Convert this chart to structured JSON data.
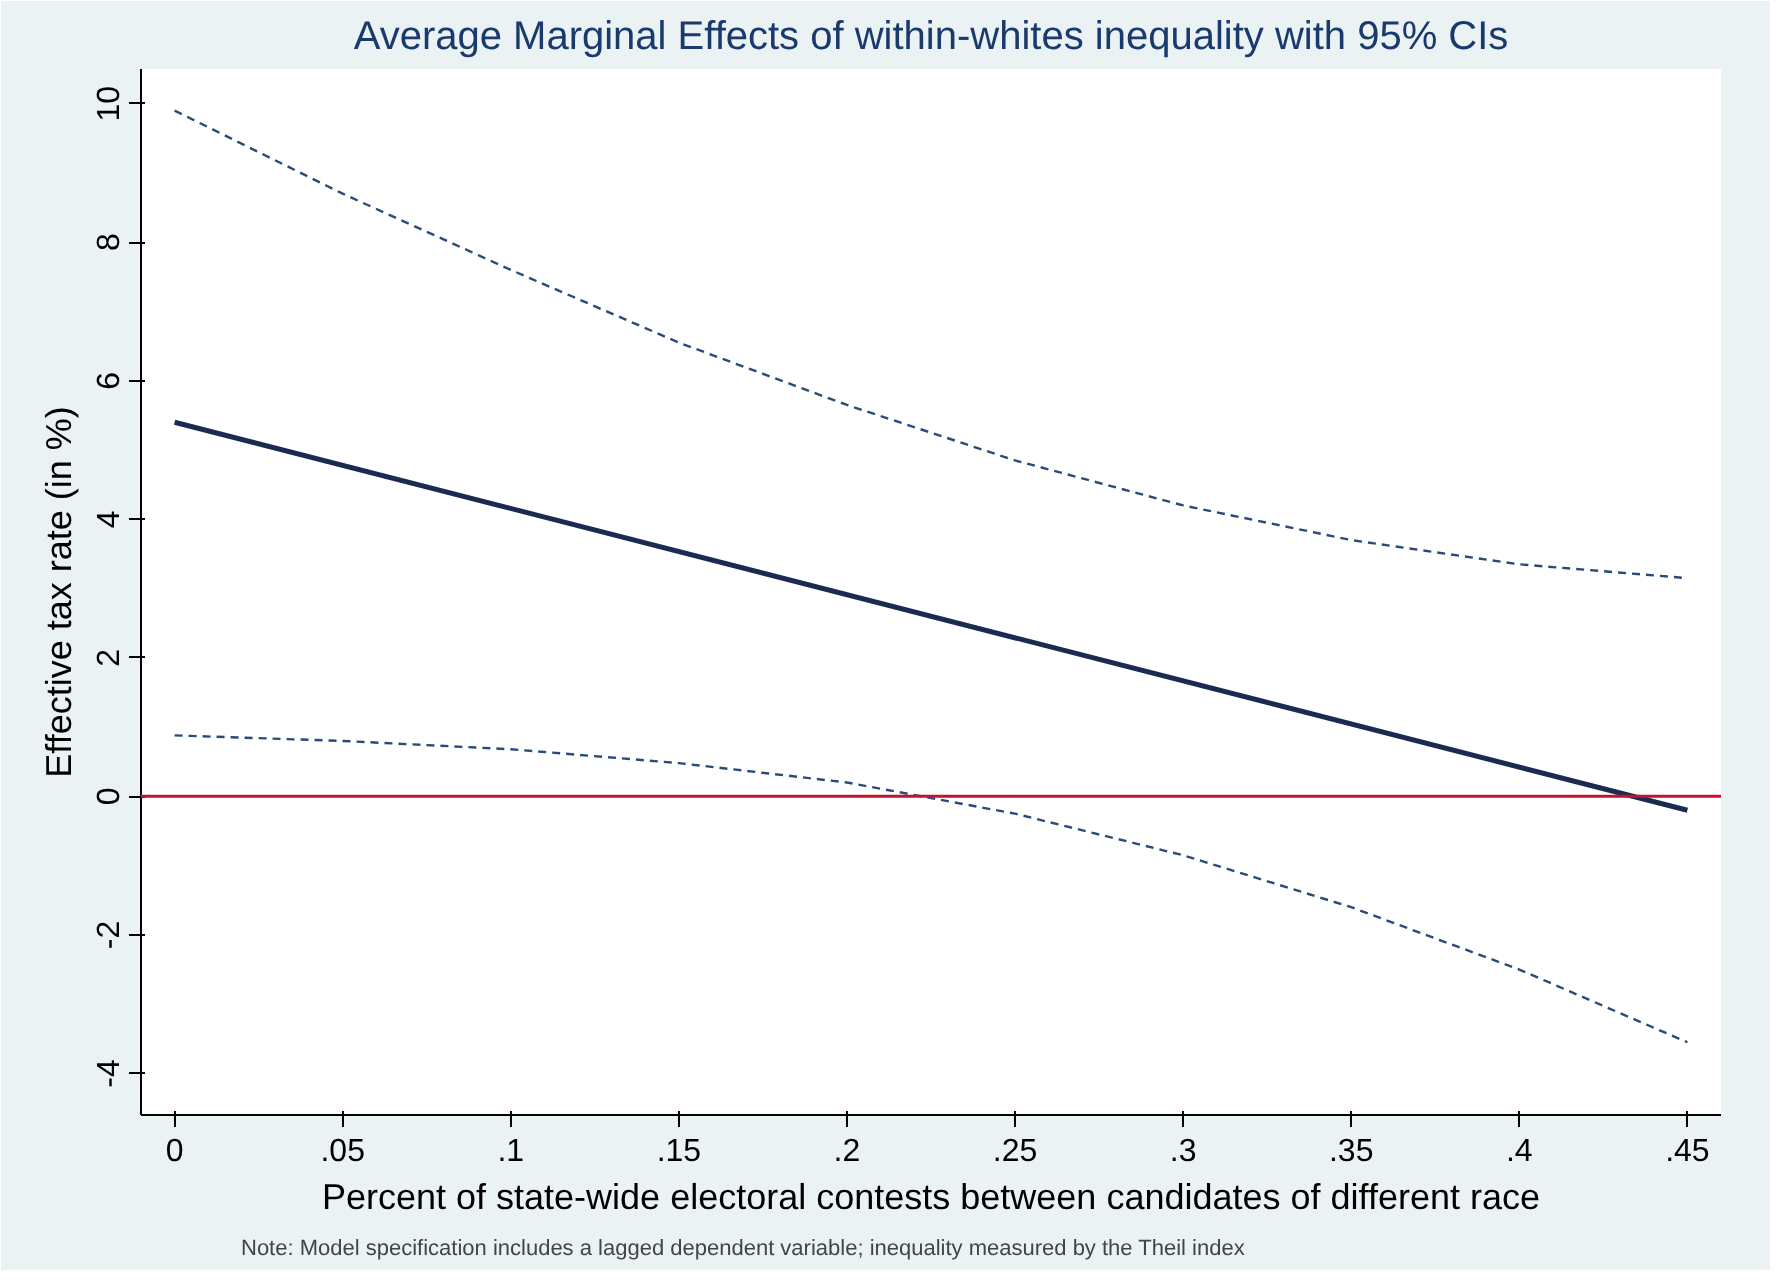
{
  "chart_data": {
    "type": "line",
    "title": "Average Marginal Effects of within-whites inequality with 95% CIs",
    "xlabel": "Percent of state-wide electoral contests between candidates of different race",
    "ylabel": "Effective tax rate (in %)",
    "x": [
      0,
      0.05,
      0.1,
      0.15,
      0.2,
      0.25,
      0.3,
      0.35,
      0.4,
      0.45
    ],
    "series": [
      {
        "color": "#1a2a50",
        "line_style": "solid",
        "x": [
          0,
          0.45
        ],
        "values": [
          5.4,
          -0.2
        ]
      },
      {
        "color": "#2a4a7a",
        "line_style": "dashed",
        "values": [
          9.9,
          8.7,
          7.6,
          6.55,
          5.65,
          4.85,
          4.2,
          3.7,
          3.35,
          3.15
        ]
      },
      {
        "color": "#2a4a7a",
        "line_style": "dashed",
        "values": [
          0.88,
          0.8,
          0.68,
          0.48,
          0.2,
          -0.25,
          -0.85,
          -1.6,
          -2.5,
          -3.55
        ]
      }
    ],
    "xlim": [
      -0.01,
      0.46
    ],
    "ylim": [
      -4.6,
      10.5
    ],
    "xticks": [
      0,
      {
        "value": 0.05,
        "label": ".05"
      },
      {
        "value": 0.1,
        "label": ".1"
      },
      {
        "value": 0.15,
        "label": ".15"
      },
      {
        "value": 0.2,
        "label": ".2"
      },
      {
        "value": 0.25,
        "label": ".25"
      },
      {
        "value": 0.3,
        "label": ".3"
      },
      {
        "value": 0.35,
        "label": ".35"
      },
      {
        "value": 0.4,
        "label": ".4"
      },
      {
        "value": 0.45,
        "label": ".45"
      }
    ],
    "yticks": [
      -4,
      -2,
      0,
      2,
      4,
      6,
      8,
      10
    ],
    "ref_lines": [
      {
        "axis": "y",
        "value": 0,
        "color": "#c8102e"
      }
    ],
    "annotations": [
      "Note: Model specification includes a lagged dependent variable; inequality measured by the Theil index"
    ],
    "grid": false,
    "marker": "none"
  }
}
